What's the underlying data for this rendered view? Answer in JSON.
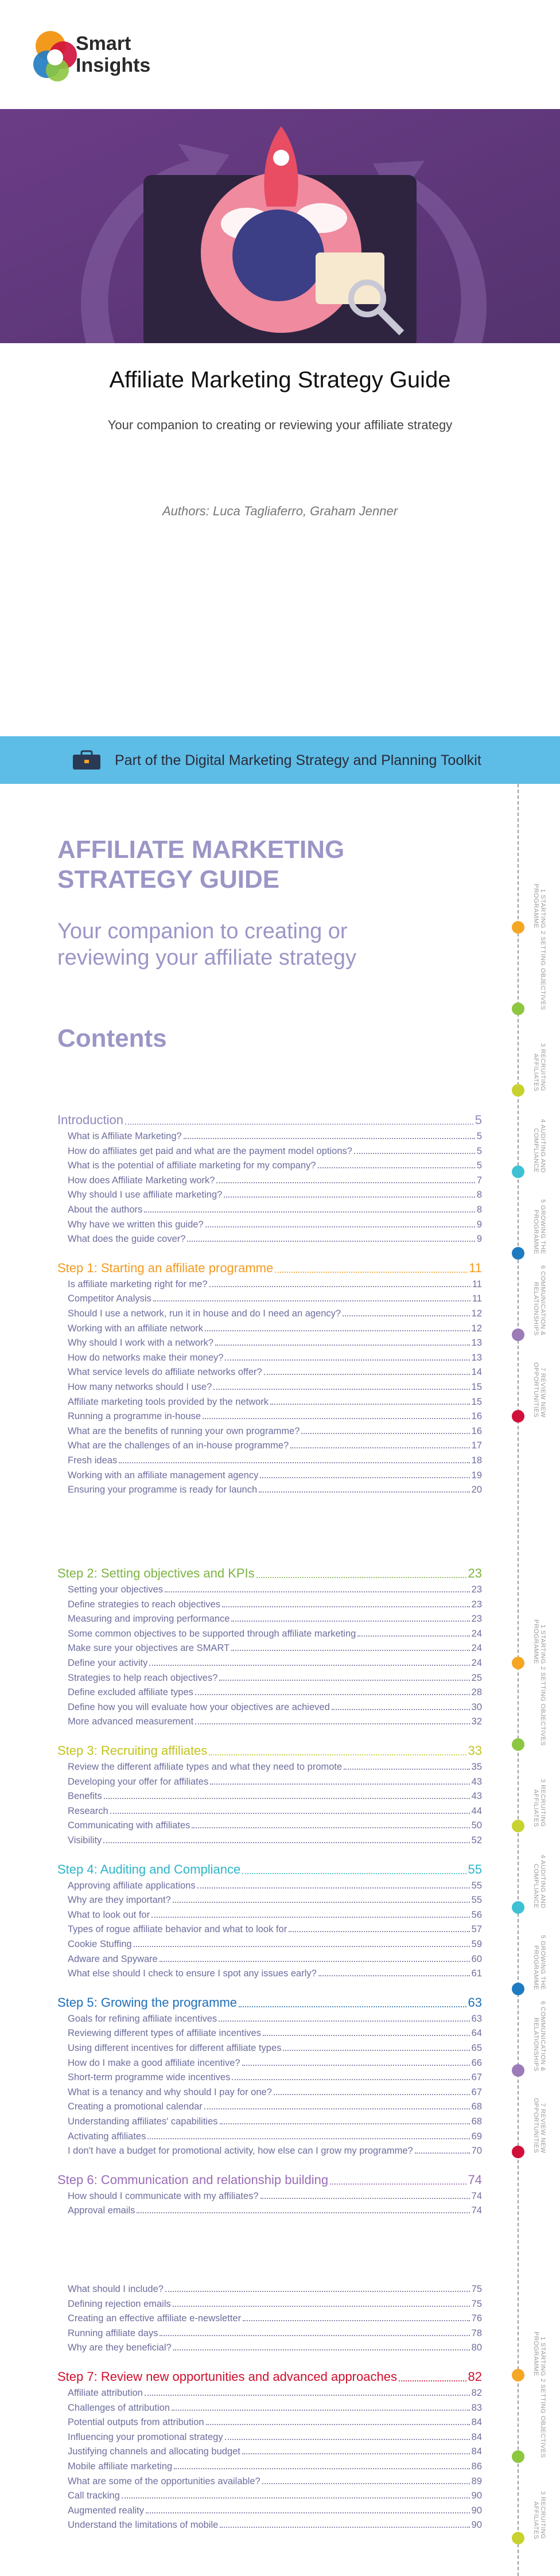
{
  "header": {
    "logo_line1": "Smart",
    "logo_line2": "Insights"
  },
  "cover": {
    "title": "Affiliate Marketing Strategy Guide",
    "subtitle": "Your companion to creating or reviewing your affiliate strategy",
    "authors": "Authors: Luca Tagliaferro, Graham Jenner"
  },
  "banner": {
    "text": "Part of the Digital Marketing Strategy and Planning Toolkit"
  },
  "document": {
    "title": "AFFILIATE MARKETING STRATEGY GUIDE",
    "subtitle": "Your companion to creating or reviewing your affiliate strategy",
    "contents_heading": "Contents",
    "pages": [
      {
        "blocks": [
          {
            "heading": "Introduction",
            "page": 5,
            "color": "#8e89bd",
            "entries": [
              {
                "title": "What is Affiliate Marketing?",
                "page": 5
              },
              {
                "title": "How do affiliates get paid and what are the payment model options?",
                "page": 5
              },
              {
                "title": "What is the potential of affiliate marketing for my company?",
                "page": 5
              },
              {
                "title": "How does Affiliate Marketing work?",
                "page": 7
              },
              {
                "title": "Why should I use affiliate marketing?",
                "page": 8
              },
              {
                "title": "About the authors",
                "page": 8
              },
              {
                "title": "Why have we written this guide?",
                "page": 9
              },
              {
                "title": "What does the guide cover?",
                "page": 9
              }
            ]
          },
          {
            "heading": "Step 1: Starting an affiliate programme",
            "page": 11,
            "color": "#f39a1e",
            "entries": [
              {
                "title": "Is affiliate marketing right for me?",
                "page": 11
              },
              {
                "title": "Competitor Analysis",
                "page": 11
              },
              {
                "title": "Should I use a network, run it in house and do I need an agency?",
                "page": 12
              },
              {
                "title": "Working with an affiliate network",
                "page": 12
              },
              {
                "title": "Why should I work with a network?",
                "page": 13
              },
              {
                "title": "How do networks make their money?",
                "page": 13
              },
              {
                "title": "What service levels do affiliate networks offer?",
                "page": 14
              },
              {
                "title": "How many networks should I use?",
                "page": 15
              },
              {
                "title": "Affiliate marketing tools provided by the network",
                "page": 15
              },
              {
                "title": "Running a programme in-house",
                "page": 16
              },
              {
                "title": "What are the benefits of running your own programme?",
                "page": 16
              },
              {
                "title": "What are the challenges of an in-house programme?",
                "page": 17
              },
              {
                "title": "Fresh ideas",
                "page": 18
              },
              {
                "title": "Working with an affiliate management agency",
                "page": 19
              },
              {
                "title": "Ensuring your programme is ready for launch",
                "page": 20
              }
            ]
          }
        ]
      },
      {
        "blocks": [
          {
            "heading": "Step 2: Setting objectives and KPIs",
            "page": 23,
            "color": "#7cb342",
            "entries": [
              {
                "title": "Setting your objectives",
                "page": 23
              },
              {
                "title": "Define strategies to reach objectives",
                "page": 23
              },
              {
                "title": "Measuring and improving performance",
                "page": 23
              },
              {
                "title": "Some common objectives to be supported through affiliate marketing",
                "page": 24
              },
              {
                "title": "Make sure your objectives are SMART",
                "page": 24
              },
              {
                "title": "Define your activity",
                "page": 24
              },
              {
                "title": "Strategies to help reach objectives?",
                "page": 25
              },
              {
                "title": "Define excluded affiliate types",
                "page": 28
              },
              {
                "title": "Define how you will evaluate how your objectives are achieved",
                "page": 30
              },
              {
                "title": "More advanced measurement",
                "page": 32
              }
            ]
          },
          {
            "heading": "Step 3: Recruiting affiliates",
            "page": 33,
            "color": "#c2c21c",
            "entries": [
              {
                "title": "Review the different affiliate types and what they need to promote",
                "page": 35
              },
              {
                "title": "Developing your offer for affiliates",
                "page": 43
              },
              {
                "title": "Benefits",
                "page": 43
              },
              {
                "title": "Research",
                "page": 44
              },
              {
                "title": "Communicating with affiliates",
                "page": 50
              },
              {
                "title": "Visibility",
                "page": 52
              }
            ]
          },
          {
            "heading": "Step 4: Auditing and Compliance",
            "page": 55,
            "color": "#2cb5c8",
            "entries": [
              {
                "title": "Approving affiliate applications",
                "page": 55
              },
              {
                "title": "Why are they important?",
                "page": 55
              },
              {
                "title": "What to look out for",
                "page": 56
              },
              {
                "title": "Types of rogue affiliate behavior and what to look for",
                "page": 57
              },
              {
                "title": "Cookie Stuffing",
                "page": 59
              },
              {
                "title": "Adware and Spyware",
                "page": 60
              },
              {
                "title": "What else should I check to ensure I spot any issues early?",
                "page": 61
              }
            ]
          },
          {
            "heading": "Step 5: Growing the programme",
            "page": 63,
            "color": "#1f6fb8",
            "entries": [
              {
                "title": "Goals for refining affiliate incentives",
                "page": 63
              },
              {
                "title": "Reviewing different types of affiliate incentives",
                "page": 64
              },
              {
                "title": "Using different incentives for different affiliate types",
                "page": 65
              },
              {
                "title": "How do I make a good affiliate incentive?",
                "page": 66
              },
              {
                "title": "Short-term programme wide incentives",
                "page": 67
              },
              {
                "title": "What is a tenancy and why should I pay for one?",
                "page": 67
              },
              {
                "title": "Creating a promotional calendar",
                "page": 68
              },
              {
                "title": "Understanding affiliates' capabilities",
                "page": 68
              },
              {
                "title": "Activating affiliates",
                "page": 69
              },
              {
                "title": "I don't have a budget for promotional activity, how else can I grow my programme?",
                "page": 70
              }
            ]
          },
          {
            "heading": "Step 6: Communication and relationship building",
            "page": 74,
            "color": "#9a6cb6",
            "entries": [
              {
                "title": "How should I communicate with my affiliates?",
                "page": 74
              },
              {
                "title": "Approval emails",
                "page": 74
              }
            ]
          }
        ]
      },
      {
        "blocks": [
          {
            "entries": [
              {
                "title": "What should I include?",
                "page": 75
              },
              {
                "title": "Defining rejection emails",
                "page": 75
              },
              {
                "title": "Creating an effective affiliate e-newsletter",
                "page": 76
              },
              {
                "title": "Running affiliate days",
                "page": 78
              },
              {
                "title": "Why are they beneficial?",
                "page": 80
              }
            ]
          },
          {
            "heading": "Step 7: Review new opportunities and advanced approaches",
            "page": 82,
            "color": "#d0102e",
            "entries": [
              {
                "title": "Affiliate attribution",
                "page": 82
              },
              {
                "title": "Challenges of attribution",
                "page": 83
              },
              {
                "title": "Potential outputs from attribution",
                "page": 84
              },
              {
                "title": "Influencing your promotional strategy",
                "page": 84
              },
              {
                "title": "Justifying channels and allocating budget",
                "page": 84
              },
              {
                "title": "Mobile affiliate marketing",
                "page": 86
              },
              {
                "title": "What are some of the opportunities available?",
                "page": 89
              },
              {
                "title": "Call tracking",
                "page": 90
              },
              {
                "title": "Augmented reality",
                "page": 90
              },
              {
                "title": "Understand the limitations of mobile",
                "page": 90
              }
            ]
          }
        ]
      }
    ]
  },
  "sidebar": {
    "steps": [
      {
        "label": "1 STARTING PROGRAMME",
        "color": "#f5a623"
      },
      {
        "label": "2 SETTING OBJECTIVES",
        "color": "#8dc63f"
      },
      {
        "label": "3 RECRUITING AFFILIATES",
        "color": "#c8d22e"
      },
      {
        "label": "4 AUDITING AND COMPLIANCE",
        "color": "#3ec1d3"
      },
      {
        "label": "5 GROWING THE PROGRAMME",
        "color": "#1f7bc1"
      },
      {
        "label": "6 COMMUNICATION & RELATIONSHIPS",
        "color": "#9b7bb8"
      },
      {
        "label": "7 REVIEW NEW OPPORTUNITIES",
        "color": "#d0103a"
      }
    ]
  }
}
